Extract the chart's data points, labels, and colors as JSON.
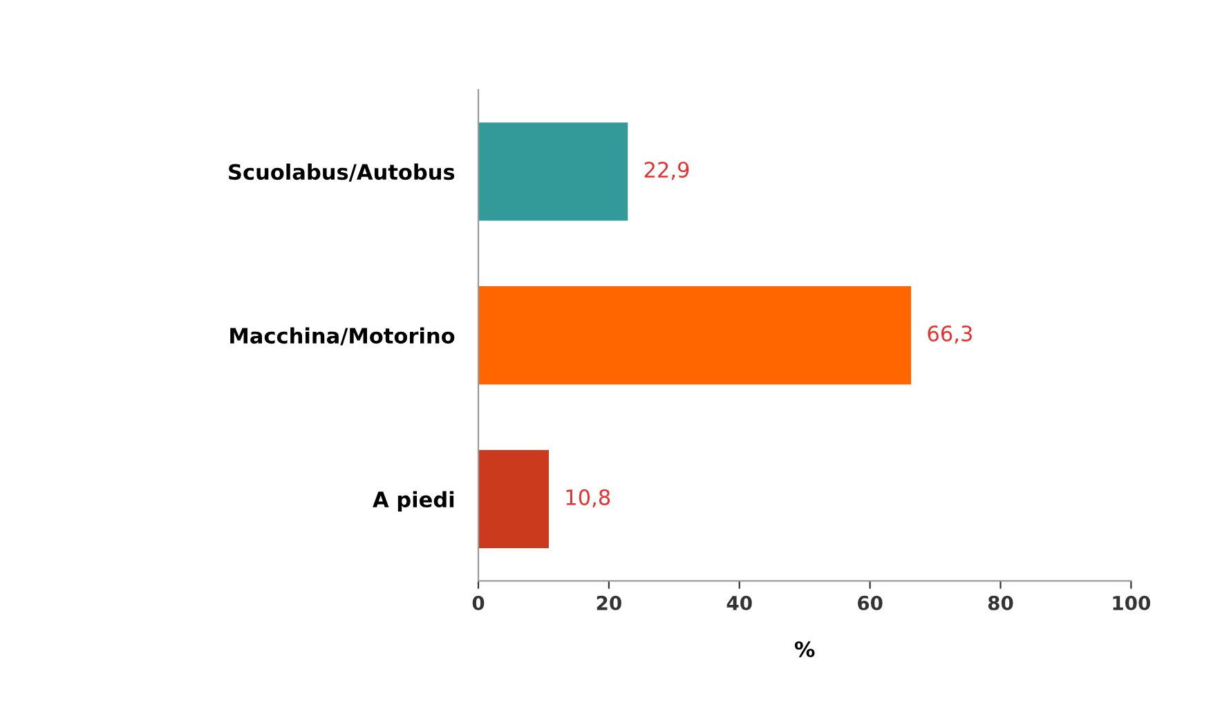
{
  "chart_data": {
    "type": "bar",
    "orientation": "horizontal",
    "xlabel": "%",
    "categories": [
      "Scuolabus/Autobus",
      "Macchina/Motorino",
      "A piedi"
    ],
    "values": [
      22.9,
      66.3,
      10.8
    ],
    "colors": [
      "#339a99",
      "#ff6600",
      "#cc3a1e"
    ],
    "value_labels": [
      "22,9",
      "66,3",
      "10,8"
    ],
    "xlim": [
      0,
      100
    ],
    "xticks": [
      0,
      20,
      40,
      60,
      80,
      100
    ],
    "grid": false
  }
}
